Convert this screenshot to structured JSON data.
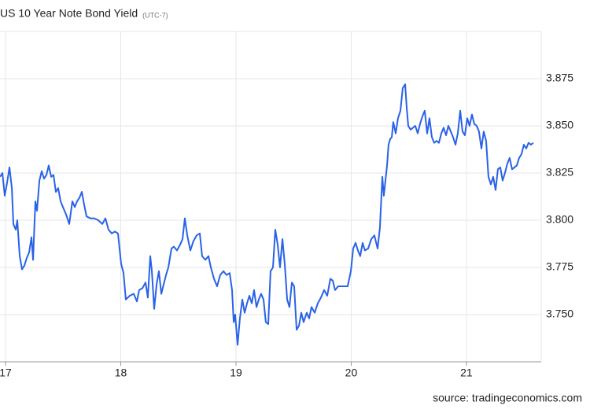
{
  "chart_data": {
    "type": "line",
    "title": "US 10 Year Note Bond Yield",
    "subtitle": "(UTC-7)",
    "source": "source: tradingeconomics.com",
    "color": "#2962e8",
    "grid": true,
    "xlim": [
      16.952,
      21.649
    ],
    "xticks": [
      17,
      18,
      19,
      20,
      21
    ],
    "ylim": [
      3.725,
      3.9
    ],
    "yticks": [
      {
        "value": 3.75,
        "label": "3.750"
      },
      3.775,
      {
        "value": 3.8,
        "label": "3.800"
      },
      3.825,
      {
        "value": 3.85,
        "label": "3.850"
      },
      3.875
    ],
    "x": [
      16.952,
      16.973,
      16.993,
      17.014,
      17.034,
      17.055,
      17.068,
      17.089,
      17.102,
      17.123,
      17.143,
      17.164,
      17.184,
      17.205,
      17.225,
      17.239,
      17.259,
      17.273,
      17.294,
      17.314,
      17.334,
      17.355,
      17.375,
      17.396,
      17.416,
      17.437,
      17.457,
      17.478,
      17.498,
      17.526,
      17.553,
      17.58,
      17.601,
      17.621,
      17.642,
      17.662,
      17.683,
      17.703,
      17.737,
      17.771,
      17.805,
      17.84,
      17.867,
      17.894,
      17.922,
      17.949,
      17.976,
      18.003,
      18.024,
      18.044,
      18.078,
      18.113,
      18.14,
      18.16,
      18.188,
      18.215,
      18.235,
      18.256,
      18.27,
      18.29,
      18.311,
      18.331,
      18.352,
      18.372,
      18.393,
      18.413,
      18.44,
      18.461,
      18.488,
      18.515,
      18.536,
      18.556,
      18.577,
      18.604,
      18.631,
      18.659,
      18.686,
      18.706,
      18.734,
      18.761,
      18.782,
      18.809,
      18.836,
      18.863,
      18.891,
      18.918,
      18.945,
      18.966,
      18.98,
      18.993,
      19.014,
      19.034,
      19.055,
      19.075,
      19.096,
      19.116,
      19.137,
      19.157,
      19.178,
      19.198,
      19.218,
      19.239,
      19.259,
      19.28,
      19.3,
      19.321,
      19.341,
      19.362,
      19.382,
      19.403,
      19.423,
      19.444,
      19.464,
      19.485,
      19.505,
      19.526,
      19.546,
      19.567,
      19.587,
      19.614,
      19.635,
      19.655,
      19.683,
      19.71,
      19.737,
      19.765,
      19.792,
      19.819,
      19.84,
      19.86,
      19.887,
      19.928,
      19.969,
      19.997,
      20.017,
      20.038,
      20.058,
      20.078,
      20.099,
      20.119,
      20.147,
      20.174,
      20.201,
      20.229,
      20.249,
      20.27,
      20.283,
      20.297,
      20.311,
      20.324,
      20.338,
      20.352,
      20.365,
      20.386,
      20.406,
      20.427,
      20.447,
      20.468,
      20.481,
      20.495,
      20.515,
      20.536,
      20.556,
      20.577,
      20.597,
      20.618,
      20.638,
      20.659,
      20.679,
      20.7,
      20.72,
      20.741,
      20.761,
      20.782,
      20.802,
      20.823,
      20.843,
      20.864,
      20.884,
      20.905,
      20.925,
      20.946,
      20.966,
      20.986,
      21.007,
      21.027,
      21.048,
      21.068,
      21.089,
      21.109,
      21.13,
      21.15,
      21.171,
      21.191,
      21.212,
      21.232,
      21.253,
      21.273,
      21.294,
      21.314,
      21.334,
      21.355,
      21.375,
      21.396,
      21.416,
      21.437,
      21.457,
      21.478,
      21.498,
      21.519,
      21.539,
      21.56,
      21.58
    ],
    "values": [
      3.823,
      3.825,
      3.813,
      3.82,
      3.828,
      3.817,
      3.798,
      3.795,
      3.8,
      3.781,
      3.774,
      3.776,
      3.78,
      3.783,
      3.791,
      3.779,
      3.81,
      3.805,
      3.821,
      3.826,
      3.822,
      3.824,
      3.829,
      3.823,
      3.824,
      3.815,
      3.817,
      3.81,
      3.807,
      3.803,
      3.798,
      3.81,
      3.807,
      3.81,
      3.812,
      3.815,
      3.808,
      3.802,
      3.801,
      3.801,
      3.8,
      3.798,
      3.801,
      3.795,
      3.793,
      3.794,
      3.793,
      3.777,
      3.772,
      3.758,
      3.76,
      3.761,
      3.757,
      3.763,
      3.764,
      3.767,
      3.759,
      3.781,
      3.773,
      3.753,
      3.766,
      3.773,
      3.761,
      3.766,
      3.771,
      3.775,
      3.785,
      3.786,
      3.784,
      3.787,
      3.79,
      3.801,
      3.792,
      3.784,
      3.789,
      3.792,
      3.793,
      3.781,
      3.779,
      3.781,
      3.775,
      3.769,
      3.765,
      3.771,
      3.773,
      3.771,
      3.772,
      3.763,
      3.746,
      3.75,
      3.734,
      3.748,
      3.758,
      3.751,
      3.756,
      3.76,
      3.756,
      3.763,
      3.754,
      3.758,
      3.761,
      3.758,
      3.746,
      3.745,
      3.773,
      3.775,
      3.795,
      3.787,
      3.775,
      3.79,
      3.777,
      3.758,
      3.754,
      3.767,
      3.765,
      3.742,
      3.744,
      3.751,
      3.746,
      3.751,
      3.748,
      3.754,
      3.751,
      3.756,
      3.759,
      3.763,
      3.76,
      3.769,
      3.768,
      3.763,
      3.765,
      3.765,
      3.765,
      3.773,
      3.785,
      3.788,
      3.784,
      3.781,
      3.788,
      3.784,
      3.785,
      3.79,
      3.792,
      3.785,
      3.796,
      3.823,
      3.813,
      3.821,
      3.829,
      3.84,
      3.843,
      3.844,
      3.852,
      3.846,
      3.854,
      3.858,
      3.87,
      3.872,
      3.86,
      3.85,
      3.848,
      3.849,
      3.85,
      3.846,
      3.851,
      3.855,
      3.858,
      3.846,
      3.854,
      3.844,
      3.841,
      3.842,
      3.841,
      3.846,
      3.849,
      3.845,
      3.85,
      3.847,
      3.844,
      3.84,
      3.846,
      3.858,
      3.847,
      3.845,
      3.854,
      3.85,
      3.856,
      3.851,
      3.85,
      3.847,
      3.838,
      3.847,
      3.842,
      3.823,
      3.819,
      3.823,
      3.816,
      3.827,
      3.828,
      3.821,
      3.825,
      3.83,
      3.833,
      3.827,
      3.828,
      3.829,
      3.833,
      3.835,
      3.84,
      3.838,
      3.841,
      3.84,
      3.841
    ]
  }
}
